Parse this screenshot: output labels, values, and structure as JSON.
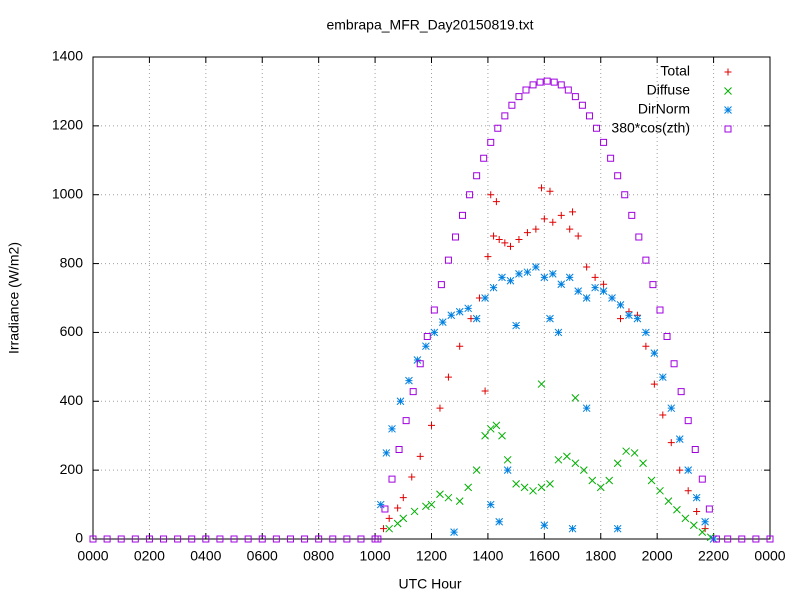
{
  "chart_data": {
    "type": "scatter",
    "title": "embrapa_MFR_Day20150819.txt",
    "x_label": "UTC Hour",
    "y_label": "Irradiance (W/m2)",
    "xlim": [
      0,
      24
    ],
    "ylim": [
      0,
      1400
    ],
    "grid": true,
    "legend": "top-right",
    "xticks": [
      {
        "value": 0,
        "label": "0000"
      },
      {
        "value": 2,
        "label": "0200"
      },
      {
        "value": 4,
        "label": "0400"
      },
      {
        "value": 6,
        "label": "0600"
      },
      {
        "value": 8,
        "label": "0800"
      },
      {
        "value": 10,
        "label": "1000"
      },
      {
        "value": 12,
        "label": "1200"
      },
      {
        "value": 14,
        "label": "1400"
      },
      {
        "value": 16,
        "label": "1600"
      },
      {
        "value": 18,
        "label": "1800"
      },
      {
        "value": 20,
        "label": "2000"
      },
      {
        "value": 22,
        "label": "2200"
      },
      {
        "value": 24,
        "label": "0000"
      }
    ],
    "yticks": [
      0,
      200,
      400,
      600,
      800,
      1000,
      1200,
      1400
    ],
    "series": [
      {
        "name": "Total",
        "color": "#e00000",
        "marker": "plus",
        "x": [
          10.3,
          10.5,
          10.8,
          11.0,
          11.3,
          11.6,
          12.0,
          12.3,
          12.6,
          13.0,
          13.4,
          13.7,
          14.0,
          14.2,
          14.4,
          14.6,
          14.8,
          15.1,
          15.4,
          15.7,
          16.0,
          16.3,
          16.6,
          16.9,
          17.2,
          17.5,
          17.8,
          18.1,
          18.4,
          18.7,
          19.0,
          19.3,
          19.6,
          19.9,
          20.2,
          20.5,
          20.8,
          21.1,
          21.4,
          21.7,
          22.0,
          14.1,
          14.3,
          15.9,
          16.2,
          17.0,
          13.9
        ],
        "values": [
          30,
          60,
          90,
          120,
          180,
          240,
          330,
          380,
          470,
          560,
          640,
          700,
          820,
          880,
          870,
          860,
          850,
          870,
          890,
          900,
          930,
          920,
          940,
          900,
          880,
          790,
          760,
          740,
          700,
          640,
          660,
          650,
          560,
          450,
          360,
          280,
          200,
          140,
          80,
          30,
          0,
          1000,
          980,
          1020,
          1010,
          950,
          430
        ]
      },
      {
        "name": "Diffuse",
        "color": "#00b000",
        "marker": "cross",
        "x": [
          10.5,
          10.8,
          11.0,
          11.4,
          11.8,
          12.0,
          12.3,
          12.6,
          13.0,
          13.3,
          13.6,
          13.9,
          14.1,
          14.3,
          14.5,
          14.7,
          15.0,
          15.3,
          15.6,
          15.9,
          16.2,
          16.5,
          16.8,
          17.1,
          17.4,
          17.7,
          18.0,
          18.3,
          18.6,
          18.9,
          19.2,
          19.5,
          19.8,
          20.1,
          20.4,
          20.7,
          21.0,
          21.3,
          21.6,
          21.9,
          15.9,
          17.1
        ],
        "values": [
          30,
          45,
          60,
          80,
          95,
          100,
          130,
          120,
          110,
          150,
          200,
          300,
          320,
          330,
          300,
          230,
          160,
          150,
          140,
          150,
          160,
          230,
          240,
          220,
          200,
          170,
          150,
          170,
          220,
          255,
          250,
          220,
          170,
          140,
          110,
          85,
          60,
          40,
          20,
          5,
          450,
          410
        ]
      },
      {
        "name": "DirNorm",
        "color": "#0080e0",
        "marker": "star",
        "x": [
          10.2,
          10.4,
          10.6,
          10.9,
          11.2,
          11.5,
          11.8,
          12.1,
          12.4,
          12.7,
          13.0,
          13.3,
          13.6,
          13.9,
          14.2,
          14.5,
          14.8,
          15.1,
          15.4,
          15.7,
          16.0,
          16.3,
          16.6,
          16.9,
          17.2,
          17.5,
          17.8,
          18.1,
          18.4,
          18.7,
          19.0,
          19.3,
          19.6,
          19.9,
          20.2,
          20.5,
          20.8,
          21.1,
          21.4,
          21.7,
          22.0,
          14.1,
          14.4,
          14.7,
          15.0,
          16.0,
          16.5,
          17.0,
          17.5,
          18.6,
          12.8,
          16.2
        ],
        "values": [
          100,
          250,
          320,
          400,
          460,
          520,
          560,
          600,
          630,
          650,
          660,
          670,
          640,
          700,
          730,
          760,
          750,
          770,
          775,
          790,
          760,
          770,
          740,
          760,
          720,
          700,
          730,
          720,
          700,
          680,
          650,
          640,
          600,
          540,
          470,
          380,
          290,
          200,
          120,
          50,
          0,
          100,
          50,
          200,
          620,
          40,
          600,
          30,
          380,
          30,
          20,
          640
        ]
      },
      {
        "name": "380*cos(zth)",
        "color": "#a000e0",
        "marker": "square",
        "x": [
          0,
          0.5,
          1,
          1.5,
          2,
          2.5,
          3,
          3.5,
          4,
          4.5,
          5,
          5.5,
          6,
          6.5,
          7,
          7.5,
          8,
          8.5,
          9,
          9.5,
          10,
          10.1,
          10.35,
          10.6,
          10.85,
          11.1,
          11.35,
          11.6,
          11.85,
          12.1,
          12.35,
          12.6,
          12.85,
          13.1,
          13.35,
          13.6,
          13.85,
          14.1,
          14.35,
          14.6,
          14.85,
          15.1,
          15.35,
          15.6,
          15.85,
          16.1,
          16.35,
          16.6,
          16.85,
          17.1,
          17.35,
          17.6,
          17.85,
          18.1,
          18.35,
          18.6,
          18.85,
          19.1,
          19.35,
          19.6,
          19.85,
          20.1,
          20.35,
          20.6,
          20.85,
          21.1,
          21.35,
          21.6,
          21.85,
          22.1,
          22.5,
          23,
          23.5,
          24
        ],
        "values": [
          0,
          0,
          0,
          0,
          0,
          0,
          0,
          0,
          0,
          0,
          0,
          0,
          0,
          0,
          0,
          0,
          0,
          0,
          0,
          0,
          0,
          0,
          87,
          174,
          260,
          344,
          428,
          509,
          588,
          665,
          739,
          810,
          877,
          940,
          1000,
          1055,
          1106,
          1152,
          1193,
          1229,
          1260,
          1285,
          1304,
          1319,
          1327,
          1330,
          1327,
          1319,
          1304,
          1285,
          1260,
          1229,
          1193,
          1152,
          1106,
          1055,
          1000,
          940,
          877,
          810,
          739,
          665,
          588,
          509,
          428,
          344,
          260,
          174,
          87,
          0,
          0,
          0,
          0,
          0
        ]
      }
    ]
  }
}
